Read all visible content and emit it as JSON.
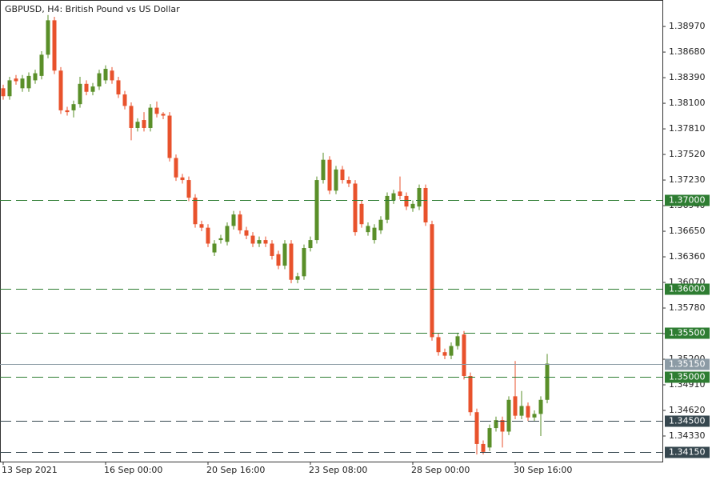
{
  "chart_data": {
    "type": "candlestick",
    "title": "GBPUSD, H4:  British Pound vs US Dollar",
    "categories": [
      "13 Sep 2021",
      null,
      null,
      null,
      null,
      null,
      null,
      null,
      null,
      null,
      null,
      null,
      null,
      null,
      null,
      null,
      "16 Sep 00:00",
      null,
      null,
      null,
      null,
      null,
      null,
      null,
      null,
      null,
      null,
      null,
      null,
      null,
      null,
      null,
      "20 Sep 16:00",
      null,
      null,
      null,
      null,
      null,
      null,
      null,
      null,
      null,
      null,
      null,
      null,
      null,
      null,
      null,
      "23 Sep 08:00",
      null,
      null,
      null,
      null,
      null,
      null,
      null,
      null,
      null,
      null,
      null,
      null,
      null,
      null,
      null,
      "28 Sep 00:00",
      null,
      null,
      null,
      null,
      null,
      null,
      null,
      null,
      null,
      null,
      null,
      null,
      null,
      null,
      null,
      "30 Sep 16:00",
      null,
      null,
      null,
      null,
      null
    ],
    "open": [
      1.3827,
      1.3818,
      1.3838,
      1.3827,
      1.3827,
      1.3836,
      1.3841,
      1.3865,
      1.3904,
      1.3847,
      1.3802,
      1.3802,
      1.3809,
      1.3832,
      1.3823,
      1.3829,
      1.3836,
      1.3847,
      1.3836,
      1.382,
      1.3807,
      1.3782,
      1.3791,
      1.3782,
      1.3805,
      1.3798,
      1.3796,
      1.3748,
      1.3726,
      1.3723,
      1.3703,
      1.3673,
      1.3669,
      1.3641,
      1.3655,
      1.3653,
      1.3671,
      1.3684,
      1.3666,
      1.366,
      1.3651,
      1.3655,
      1.3651,
      1.3639,
      1.3626,
      1.3651,
      1.361,
      1.3614,
      1.3646,
      1.3655,
      1.3723,
      1.3746,
      1.3711,
      1.3735,
      1.3723,
      1.3719,
      1.3696,
      1.3664,
      1.3655,
      1.3666,
      1.3678,
      1.37,
      1.371,
      1.3705,
      1.3691,
      1.3693,
      1.3714,
      1.3673,
      1.3545,
      1.3528,
      1.3524,
      1.3535,
      1.3548,
      1.3501,
      1.346,
      1.3424,
      1.342,
      1.3442,
      1.3451,
      1.3438,
      1.3478,
      1.3456,
      1.3467,
      1.3454,
      1.3458,
      1.3474
    ],
    "high": [
      1.3831,
      1.384,
      1.3842,
      1.3842,
      1.3845,
      1.3848,
      1.3869,
      1.391,
      1.3908,
      1.3851,
      1.3806,
      1.3813,
      1.384,
      1.3836,
      1.3833,
      1.3848,
      1.3853,
      1.3851,
      1.384,
      1.3824,
      1.3811,
      1.3793,
      1.38,
      1.3809,
      1.3812,
      1.38,
      1.38,
      1.3752,
      1.373,
      1.3727,
      1.3707,
      1.3677,
      1.3673,
      1.3655,
      1.3661,
      1.3675,
      1.3688,
      1.3688,
      1.367,
      1.3664,
      1.3659,
      1.3659,
      1.3655,
      1.3643,
      1.3655,
      1.3655,
      1.3618,
      1.365,
      1.3659,
      1.3727,
      1.3754,
      1.375,
      1.3739,
      1.3739,
      1.3727,
      1.3723,
      1.37,
      1.3675,
      1.3673,
      1.3682,
      1.3709,
      1.3712,
      1.3727,
      1.3709,
      1.37,
      1.3718,
      1.3718,
      1.3677,
      1.3549,
      1.3532,
      1.3539,
      1.355,
      1.3552,
      1.3505,
      1.3464,
      1.3428,
      1.3446,
      1.3455,
      1.3455,
      1.3478,
      1.3518,
      1.3484,
      1.3471,
      1.3462,
      1.3478,
      1.3526
    ],
    "low": [
      1.3814,
      1.3814,
      1.3831,
      1.3823,
      1.3823,
      1.3832,
      1.3837,
      1.3861,
      1.3843,
      1.3798,
      1.3796,
      1.3794,
      1.3805,
      1.3819,
      1.3819,
      1.3825,
      1.3832,
      1.3832,
      1.3816,
      1.3803,
      1.3768,
      1.3778,
      1.3778,
      1.3778,
      1.3794,
      1.3792,
      1.3744,
      1.3722,
      1.3719,
      1.3699,
      1.3669,
      1.3665,
      1.3647,
      1.3637,
      1.3651,
      1.3649,
      1.3667,
      1.3662,
      1.3656,
      1.3647,
      1.3647,
      1.3647,
      1.3633,
      1.3622,
      1.3622,
      1.3606,
      1.3606,
      1.361,
      1.3642,
      1.3651,
      1.3719,
      1.3707,
      1.3707,
      1.3719,
      1.3715,
      1.366,
      1.3669,
      1.366,
      1.3651,
      1.3662,
      1.3674,
      1.3696,
      1.3701,
      1.3689,
      1.3687,
      1.3689,
      1.3671,
      1.3541,
      1.3524,
      1.352,
      1.352,
      1.3531,
      1.3497,
      1.3456,
      1.3412,
      1.3412,
      1.3416,
      1.3438,
      1.342,
      1.3434,
      1.3452,
      1.3452,
      1.345,
      1.345,
      1.3433,
      1.347
    ],
    "close": [
      1.3818,
      1.3836,
      1.3835,
      1.3838,
      1.3841,
      1.3844,
      1.3865,
      1.3904,
      1.3847,
      1.3802,
      1.38,
      1.3809,
      1.3832,
      1.3823,
      1.3829,
      1.3844,
      1.3849,
      1.3836,
      1.382,
      1.3807,
      1.3782,
      1.3789,
      1.3782,
      1.3805,
      1.3798,
      1.3796,
      1.3748,
      1.3726,
      1.3723,
      1.3703,
      1.3673,
      1.3669,
      1.3651,
      1.3651,
      1.3657,
      1.3671,
      1.3684,
      1.3666,
      1.366,
      1.3651,
      1.3655,
      1.3651,
      1.3637,
      1.3626,
      1.3651,
      1.361,
      1.3614,
      1.3646,
      1.3655,
      1.3723,
      1.3746,
      1.3711,
      1.3735,
      1.3723,
      1.3719,
      1.3664,
      1.3673,
      1.3671,
      1.3669,
      1.3678,
      1.3705,
      1.3708,
      1.3705,
      1.3693,
      1.3696,
      1.3714,
      1.3675,
      1.3545,
      1.3528,
      1.3524,
      1.3535,
      1.3546,
      1.3501,
      1.346,
      1.3424,
      1.3415,
      1.3442,
      1.3451,
      1.3438,
      1.3474,
      1.3456,
      1.3467,
      1.3454,
      1.3458,
      1.3474,
      1.3515
    ],
    "up_color": "#5a8f29",
    "down_color": "#e8522c",
    "ylim": [
      1.3404,
      1.3927
    ],
    "yticks": [
      {
        "value": 1.3897,
        "label": "1.38970"
      },
      {
        "value": 1.3868,
        "label": "1.38680"
      },
      {
        "value": 1.3839,
        "label": "1.38390"
      },
      {
        "value": 1.381,
        "label": "1.38100"
      },
      {
        "value": 1.3781,
        "label": "1.37810"
      },
      {
        "value": 1.3752,
        "label": "1.37520"
      },
      {
        "value": 1.3723,
        "label": "1.37230"
      },
      {
        "value": 1.3694,
        "label": "1.36940"
      },
      {
        "value": 1.3665,
        "label": "1.36650"
      },
      {
        "value": 1.3636,
        "label": "1.36360"
      },
      {
        "value": 1.3607,
        "label": "1.36070"
      },
      {
        "value": 1.3578,
        "label": "1.35780"
      },
      {
        "value": 1.3549,
        "label": "1.35490"
      },
      {
        "value": 1.352,
        "label": "1.35200"
      },
      {
        "value": 1.3491,
        "label": "1.34910"
      },
      {
        "value": 1.3462,
        "label": "1.34620"
      },
      {
        "value": 1.3433,
        "label": "1.34330"
      }
    ],
    "levels": [
      {
        "value": 1.37,
        "label": "1.37000",
        "color": "#2e7d32",
        "dashed": true
      },
      {
        "value": 1.36,
        "label": "1.36000",
        "color": "#2e7d32",
        "dashed": true
      },
      {
        "value": 1.355,
        "label": "1.35500",
        "color": "#2e7d32",
        "dashed": true
      },
      {
        "value": 1.3515,
        "label": "1.35150",
        "color": "#8c9ba5",
        "dashed": false
      },
      {
        "value": 1.35,
        "label": "1.35000",
        "color": "#2e7d32",
        "dashed": true
      },
      {
        "value": 1.345,
        "label": "1.34500",
        "color": "#36474f",
        "dashed": true
      },
      {
        "value": 1.3415,
        "label": "1.34150",
        "color": "#36474f",
        "dashed": true
      }
    ]
  }
}
